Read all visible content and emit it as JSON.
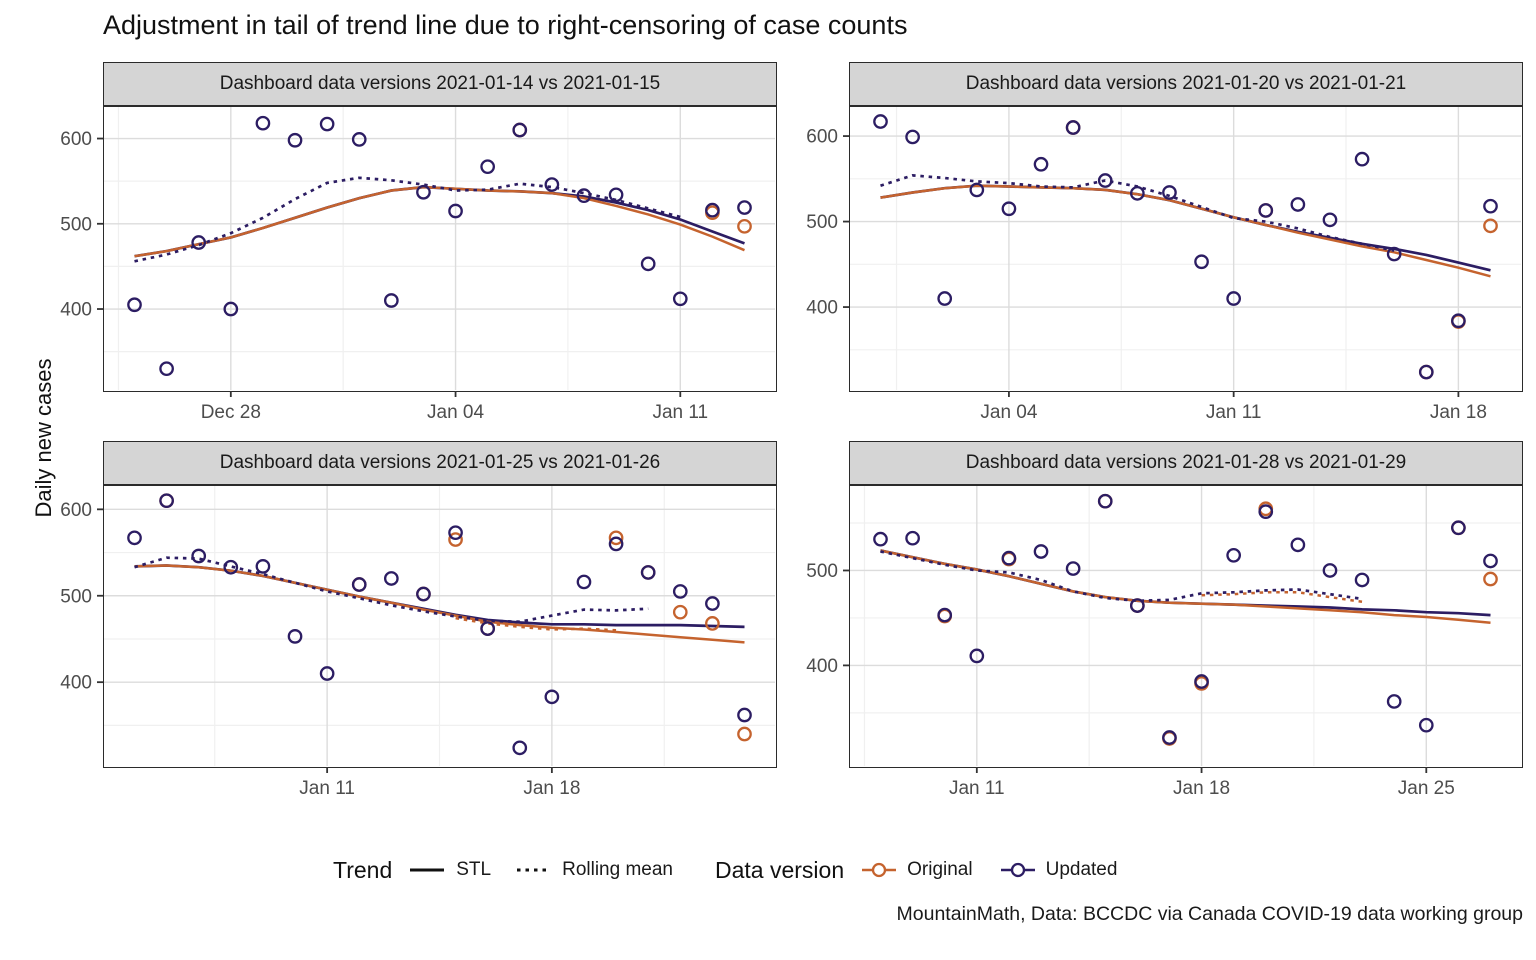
{
  "title": "Adjustment in tail of trend line due to right-censoring of case counts",
  "ylabel": "Daily new cases",
  "caption": "MountainMath, Data: BCCDC via Canada COVID-19 data working group",
  "legend": {
    "trend_title": "Trend",
    "stl_label": "STL",
    "rolling_label": "Rolling mean",
    "version_title": "Data version",
    "original_label": "Original",
    "updated_label": "Updated"
  },
  "colors": {
    "original": "#C5632E",
    "updated": "#2C1D63",
    "grid_major": "#DCDCDC",
    "grid_minor": "#F0F0F0",
    "axis_text": "#4D4D4D",
    "tick_mark": "#333333",
    "strip_bg": "#D5D5D5",
    "panel_border": "#2B2B2B"
  },
  "chart_data": [
    {
      "type": "scatter",
      "strip": "Dashboard data versions 2021-01-14 vs 2021-01-15",
      "dates": [
        "2020-12-25",
        "2020-12-26",
        "2020-12-27",
        "2020-12-28",
        "2020-12-29",
        "2020-12-30",
        "2020-12-31",
        "2021-01-01",
        "2021-01-02",
        "2021-01-03",
        "2021-01-04",
        "2021-01-05",
        "2021-01-06",
        "2021-01-07",
        "2021-01-08",
        "2021-01-09",
        "2021-01-10",
        "2021-01-11",
        "2021-01-12",
        "2021-01-13"
      ],
      "x_ticks": [
        {
          "label": "Dec 28",
          "i": 3
        },
        {
          "label": "Jan 04",
          "i": 10
        },
        {
          "label": "Jan 11",
          "i": 17
        }
      ],
      "y_ticks": [
        400,
        500,
        600
      ],
      "y_minor": [
        350,
        450,
        550
      ],
      "y_domain": [
        305,
        637
      ],
      "points_updated": [
        405,
        330,
        478,
        400,
        618,
        598,
        617,
        599,
        410,
        537,
        515,
        567,
        610,
        546,
        533,
        534,
        453,
        412,
        516,
        519
      ],
      "points_original": [
        null,
        null,
        null,
        null,
        null,
        null,
        null,
        null,
        null,
        null,
        null,
        null,
        610,
        null,
        null,
        null,
        null,
        null,
        513,
        497
      ],
      "stl_updated": [
        462,
        468,
        476,
        484,
        495,
        507,
        519,
        530,
        539,
        543,
        541,
        539,
        538,
        536,
        532,
        525,
        516,
        505,
        491,
        477
      ],
      "stl_original": [
        462,
        468,
        476,
        484,
        495,
        507,
        519,
        530,
        539,
        543,
        541,
        539,
        538,
        536,
        530,
        521,
        511,
        499,
        485,
        469
      ],
      "roll_updated": [
        456,
        464,
        475,
        489,
        507,
        529,
        548,
        554,
        551,
        546,
        539,
        540,
        547,
        543,
        536,
        528,
        518,
        508,
        null,
        null
      ],
      "roll_original": [
        null,
        null,
        null,
        null,
        null,
        null,
        null,
        null,
        null,
        null,
        null,
        null,
        null,
        null,
        null,
        null,
        null,
        null,
        null,
        null
      ]
    },
    {
      "type": "scatter",
      "strip": "Dashboard data versions 2021-01-20 vs 2021-01-21",
      "dates": [
        "2020-12-31",
        "2021-01-01",
        "2021-01-02",
        "2021-01-03",
        "2021-01-04",
        "2021-01-05",
        "2021-01-06",
        "2021-01-07",
        "2021-01-08",
        "2021-01-09",
        "2021-01-10",
        "2021-01-11",
        "2021-01-12",
        "2021-01-13",
        "2021-01-14",
        "2021-01-15",
        "2021-01-16",
        "2021-01-17",
        "2021-01-18",
        "2021-01-19"
      ],
      "x_ticks": [
        {
          "label": "Jan 04",
          "i": 4
        },
        {
          "label": "Jan 11",
          "i": 11
        },
        {
          "label": "Jan 18",
          "i": 18
        }
      ],
      "y_ticks": [
        400,
        500,
        600
      ],
      "y_minor": [
        350,
        450,
        550
      ],
      "y_domain": [
        303,
        634
      ],
      "points_updated": [
        617,
        599,
        410,
        537,
        515,
        567,
        610,
        548,
        533,
        534,
        453,
        410,
        513,
        520,
        502,
        573,
        462,
        324,
        384,
        518
      ],
      "points_original": [
        null,
        null,
        null,
        null,
        null,
        null,
        610,
        null,
        null,
        null,
        null,
        null,
        513,
        null,
        null,
        null,
        null,
        324,
        383,
        495
      ],
      "stl_updated": [
        528,
        534,
        539,
        542,
        541,
        540,
        539,
        537,
        532,
        525,
        515,
        505,
        496,
        488,
        481,
        474,
        468,
        461,
        452,
        443
      ],
      "stl_original": [
        528,
        534,
        539,
        542,
        541,
        540,
        539,
        537,
        532,
        525,
        515,
        505,
        496,
        487,
        479,
        471,
        464,
        455,
        446,
        436
      ],
      "roll_updated": [
        542,
        554,
        551,
        547,
        545,
        541,
        540,
        548,
        541,
        530,
        517,
        504,
        500,
        492,
        482,
        474,
        466,
        null,
        null,
        null
      ],
      "roll_original": [
        null,
        null,
        null,
        null,
        null,
        null,
        null,
        null,
        null,
        null,
        null,
        null,
        null,
        null,
        null,
        null,
        null,
        null,
        null,
        null
      ]
    },
    {
      "type": "scatter",
      "strip": "Dashboard data versions 2021-01-25 vs 2021-01-26",
      "dates": [
        "2021-01-05",
        "2021-01-06",
        "2021-01-07",
        "2021-01-08",
        "2021-01-09",
        "2021-01-10",
        "2021-01-11",
        "2021-01-12",
        "2021-01-13",
        "2021-01-14",
        "2021-01-15",
        "2021-01-16",
        "2021-01-17",
        "2021-01-18",
        "2021-01-19",
        "2021-01-20",
        "2021-01-21",
        "2021-01-22",
        "2021-01-23",
        "2021-01-24"
      ],
      "x_ticks": [
        {
          "label": "Jan 11",
          "i": 6
        },
        {
          "label": "Jan 18",
          "i": 13
        }
      ],
      "y_ticks": [
        400,
        500,
        600
      ],
      "y_minor": [
        350,
        450,
        550
      ],
      "y_domain": [
        303,
        627
      ],
      "points_updated": [
        567,
        610,
        546,
        533,
        534,
        453,
        410,
        513,
        520,
        502,
        573,
        462,
        324,
        383,
        516,
        560,
        527,
        505,
        491,
        362
      ],
      "points_original": [
        null,
        610,
        null,
        null,
        null,
        null,
        null,
        513,
        null,
        502,
        565,
        462,
        null,
        null,
        null,
        567,
        527,
        481,
        468,
        340
      ],
      "stl_updated": [
        534,
        535,
        533,
        529,
        523,
        515,
        507,
        499,
        492,
        485,
        478,
        472,
        469,
        467,
        467,
        466,
        466,
        466,
        465,
        464
      ],
      "stl_original": [
        534,
        535,
        533,
        529,
        523,
        515,
        507,
        499,
        492,
        484,
        477,
        470,
        466,
        463,
        461,
        458,
        455,
        452,
        449,
        446
      ],
      "roll_updated": [
        533,
        544,
        543,
        534,
        525,
        515,
        505,
        497,
        489,
        482,
        476,
        471,
        470,
        477,
        484,
        483,
        485,
        null,
        null,
        null
      ],
      "roll_original": [
        null,
        null,
        null,
        null,
        null,
        null,
        null,
        null,
        null,
        null,
        474,
        468,
        464,
        461,
        462,
        460,
        null,
        null,
        null,
        null
      ]
    },
    {
      "type": "scatter",
      "strip": "Dashboard data versions 2021-01-28 vs 2021-01-29",
      "dates": [
        "2021-01-08",
        "2021-01-09",
        "2021-01-10",
        "2021-01-11",
        "2021-01-12",
        "2021-01-13",
        "2021-01-14",
        "2021-01-15",
        "2021-01-16",
        "2021-01-17",
        "2021-01-18",
        "2021-01-19",
        "2021-01-20",
        "2021-01-21",
        "2021-01-22",
        "2021-01-23",
        "2021-01-24",
        "2021-01-25",
        "2021-01-26",
        "2021-01-27"
      ],
      "x_ticks": [
        {
          "label": "Jan 11",
          "i": 3
        },
        {
          "label": "Jan 18",
          "i": 10
        },
        {
          "label": "Jan 25",
          "i": 17
        }
      ],
      "y_ticks": [
        400,
        500
      ],
      "y_minor": [
        350,
        450,
        550
      ],
      "y_domain": [
        294,
        589
      ],
      "points_updated": [
        533,
        534,
        453,
        410,
        513,
        520,
        502,
        573,
        463,
        324,
        383,
        516,
        562,
        527,
        500,
        490,
        362,
        337,
        545,
        510
      ],
      "points_original": [
        null,
        null,
        452,
        null,
        512,
        null,
        null,
        573,
        463,
        323,
        381,
        null,
        565,
        null,
        null,
        null,
        null,
        null,
        545,
        491
      ],
      "stl_updated": [
        521,
        514,
        507,
        501,
        494,
        486,
        478,
        472,
        468,
        466,
        465,
        464,
        463,
        462,
        461,
        459,
        458,
        456,
        455,
        453
      ],
      "stl_original": [
        521,
        514,
        507,
        501,
        494,
        486,
        478,
        472,
        468,
        466,
        465,
        464,
        462,
        460,
        458,
        456,
        453,
        451,
        448,
        445
      ],
      "roll_updated": [
        520,
        513,
        506,
        500,
        498,
        490,
        478,
        471,
        468,
        469,
        476,
        477,
        479,
        480,
        475,
        470,
        null,
        null,
        null,
        null
      ],
      "roll_original": [
        null,
        null,
        null,
        null,
        null,
        null,
        null,
        null,
        null,
        null,
        474,
        475,
        477,
        477,
        472,
        467,
        null,
        null,
        null,
        null
      ]
    }
  ]
}
